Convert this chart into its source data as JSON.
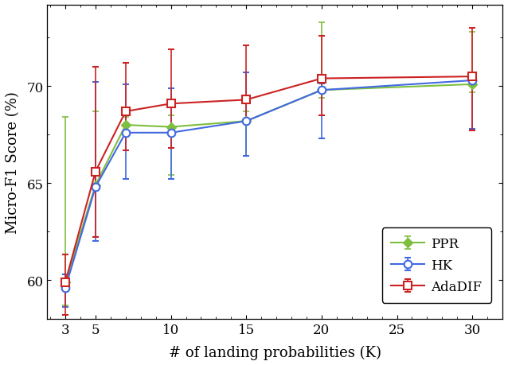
{
  "x": [
    3,
    5,
    7,
    10,
    15,
    20,
    30
  ],
  "ppr_y": [
    59.9,
    64.9,
    68.0,
    67.9,
    68.2,
    69.8,
    70.1
  ],
  "ppr_yerr_lo": [
    1.2,
    0.15,
    0.6,
    2.5,
    1.8,
    0.4,
    0.4
  ],
  "ppr_yerr_hi": [
    8.5,
    3.8,
    0.4,
    0.6,
    0.5,
    3.5,
    2.7
  ],
  "hk_y": [
    59.6,
    64.8,
    67.6,
    67.6,
    68.2,
    69.8,
    70.3
  ],
  "hk_yerr_lo": [
    1.0,
    2.8,
    2.4,
    2.4,
    1.8,
    2.5,
    2.5
  ],
  "hk_yerr_hi": [
    0.7,
    5.4,
    2.5,
    2.3,
    2.5,
    0.35,
    0.35
  ],
  "adadif_y": [
    59.9,
    65.6,
    68.7,
    69.1,
    69.3,
    70.4,
    70.5
  ],
  "adadif_yerr_lo": [
    1.7,
    3.4,
    2.0,
    2.3,
    1.0,
    1.9,
    2.8
  ],
  "adadif_yerr_hi": [
    1.4,
    5.4,
    2.5,
    2.8,
    2.8,
    2.2,
    2.5
  ],
  "ppr_color": "#7fbf3f",
  "hk_color": "#4169e1",
  "adadif_color": "#cc2222",
  "xlabel": "# of landing probabilities (K)",
  "ylabel": "Micro-F1 Score (%)",
  "xlim": [
    1.8,
    32
  ],
  "ylim": [
    58.0,
    74.2
  ],
  "xticks": [
    3,
    5,
    10,
    15,
    20,
    25,
    30
  ],
  "yticks": [
    60,
    65,
    70
  ],
  "legend_labels": [
    "PPR",
    "HK",
    "AdaDIF"
  ]
}
